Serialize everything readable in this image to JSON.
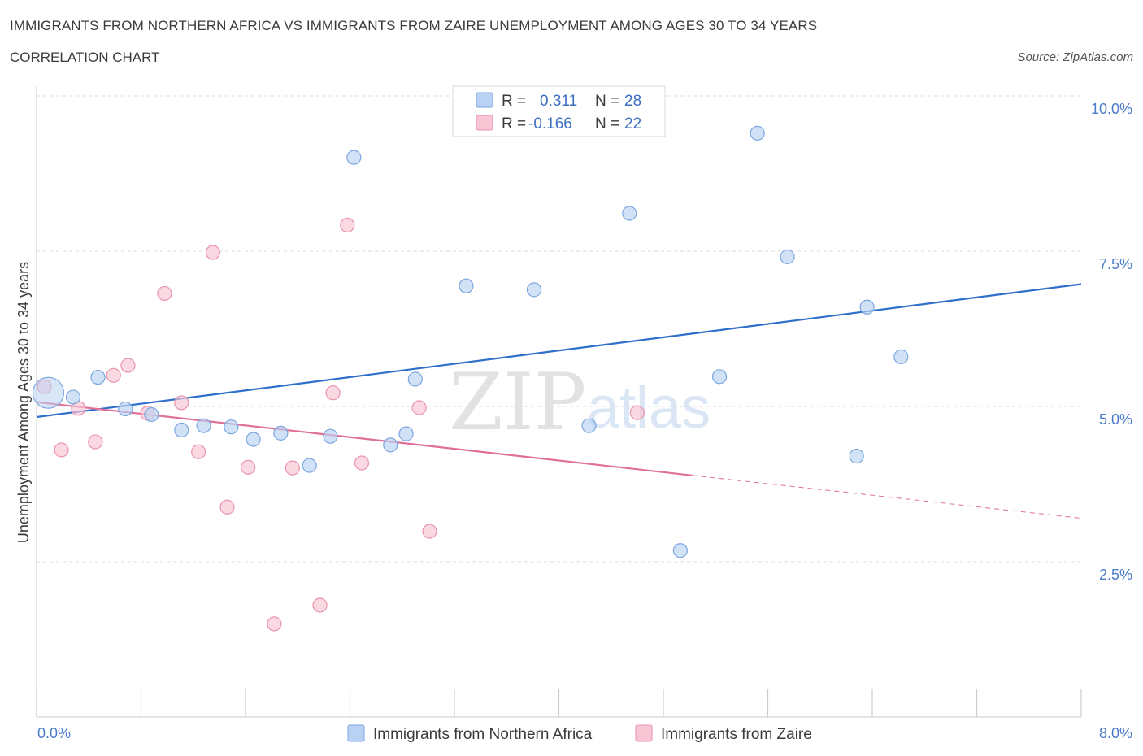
{
  "header": {
    "title": "IMMIGRANTS FROM NORTHERN AFRICA VS IMMIGRANTS FROM ZAIRE UNEMPLOYMENT AMONG AGES 30 TO 34 YEARS",
    "subtitle": "CORRELATION CHART",
    "source": "Source: ZipAtlas.com"
  },
  "watermark": {
    "zip": "ZIP",
    "atlas": "atlas"
  },
  "colors": {
    "blue_fill": "#b9d2f3",
    "blue_stroke": "#7aa6e0",
    "blue_line": "#2f6fcc",
    "pink_fill": "#f8c5d4",
    "pink_stroke": "#ea93ad",
    "pink_line": "#e0709a",
    "tick_text": "#4a7cc9",
    "grid": "#dddddd"
  },
  "legend": {
    "rows": [
      {
        "r_label": "R = ",
        "r_value": "0.311",
        "n_label": "N = ",
        "n_value": "28"
      },
      {
        "r_label": "R = ",
        "r_value": "-0.166",
        "n_label": "N = ",
        "n_value": "22"
      }
    ]
  },
  "bottom_legend": {
    "items": [
      "Immigrants from Northern Africa",
      "Immigrants from Zaire"
    ]
  },
  "chart_data": {
    "type": "scatter",
    "title": "IMMIGRANTS FROM NORTHERN AFRICA VS IMMIGRANTS FROM ZAIRE UNEMPLOYMENT AMONG AGES 30 TO 34 YEARS",
    "subtitle": "CORRELATION CHART",
    "xlabel": "",
    "ylabel": "Unemployment Among Ages 30 to 34 years",
    "xlim": [
      0,
      8
    ],
    "ylim": [
      0,
      10
    ],
    "x_tick_labels": [
      "0.0%",
      "8.0%"
    ],
    "y_ticks": [
      2.5,
      5.0,
      7.5,
      10.0
    ],
    "y_tick_labels": [
      "2.5%",
      "5.0%",
      "7.5%",
      "10.0%"
    ],
    "grid": true,
    "legend_position": "top-center",
    "series": [
      {
        "name": "Immigrants from Northern Africa",
        "r": 0.311,
        "n": 28,
        "trend": {
          "x0": 0.0,
          "y0": 4.83,
          "x1": 8.0,
          "y1": 6.97
        },
        "points": [
          {
            "x": 0.09,
            "y": 5.22,
            "large": true
          },
          {
            "x": 0.28,
            "y": 5.15
          },
          {
            "x": 0.47,
            "y": 5.47
          },
          {
            "x": 0.68,
            "y": 4.96
          },
          {
            "x": 0.88,
            "y": 4.87
          },
          {
            "x": 1.11,
            "y": 4.62
          },
          {
            "x": 1.28,
            "y": 4.69
          },
          {
            "x": 1.49,
            "y": 4.67
          },
          {
            "x": 1.66,
            "y": 4.47
          },
          {
            "x": 1.87,
            "y": 4.57
          },
          {
            "x": 2.09,
            "y": 4.05
          },
          {
            "x": 2.25,
            "y": 4.52
          },
          {
            "x": 2.43,
            "y": 9.01
          },
          {
            "x": 2.71,
            "y": 4.38
          },
          {
            "x": 2.83,
            "y": 4.56
          },
          {
            "x": 2.9,
            "y": 5.44
          },
          {
            "x": 3.29,
            "y": 6.94
          },
          {
            "x": 3.45,
            "y": 9.52
          },
          {
            "x": 3.81,
            "y": 6.88
          },
          {
            "x": 4.23,
            "y": 4.69
          },
          {
            "x": 4.54,
            "y": 8.11
          },
          {
            "x": 4.93,
            "y": 2.68
          },
          {
            "x": 5.23,
            "y": 5.48
          },
          {
            "x": 5.52,
            "y": 9.4
          },
          {
            "x": 5.75,
            "y": 7.41
          },
          {
            "x": 6.28,
            "y": 4.2
          },
          {
            "x": 6.36,
            "y": 6.6
          },
          {
            "x": 6.62,
            "y": 5.8
          }
        ]
      },
      {
        "name": "Immigrants from Zaire",
        "r": -0.166,
        "n": 22,
        "trend": {
          "x0": 0.0,
          "y0": 5.07,
          "x1": 5.02,
          "y1": 3.89,
          "dashed_to_x": 8.0,
          "dashed_to_y": 3.2
        },
        "points": [
          {
            "x": 0.06,
            "y": 5.32
          },
          {
            "x": 0.19,
            "y": 4.3
          },
          {
            "x": 0.32,
            "y": 4.97
          },
          {
            "x": 0.45,
            "y": 4.43
          },
          {
            "x": 0.59,
            "y": 5.5
          },
          {
            "x": 0.7,
            "y": 5.66
          },
          {
            "x": 0.85,
            "y": 4.89
          },
          {
            "x": 0.98,
            "y": 6.82
          },
          {
            "x": 1.11,
            "y": 5.06
          },
          {
            "x": 1.24,
            "y": 4.27
          },
          {
            "x": 1.35,
            "y": 7.48
          },
          {
            "x": 1.46,
            "y": 3.38
          },
          {
            "x": 1.62,
            "y": 4.02
          },
          {
            "x": 1.82,
            "y": 1.5
          },
          {
            "x": 1.96,
            "y": 4.01
          },
          {
            "x": 2.17,
            "y": 1.8
          },
          {
            "x": 2.27,
            "y": 5.22
          },
          {
            "x": 2.38,
            "y": 7.92
          },
          {
            "x": 2.49,
            "y": 4.09
          },
          {
            "x": 2.93,
            "y": 4.98
          },
          {
            "x": 3.01,
            "y": 2.99
          },
          {
            "x": 4.6,
            "y": 4.9
          }
        ]
      }
    ]
  }
}
